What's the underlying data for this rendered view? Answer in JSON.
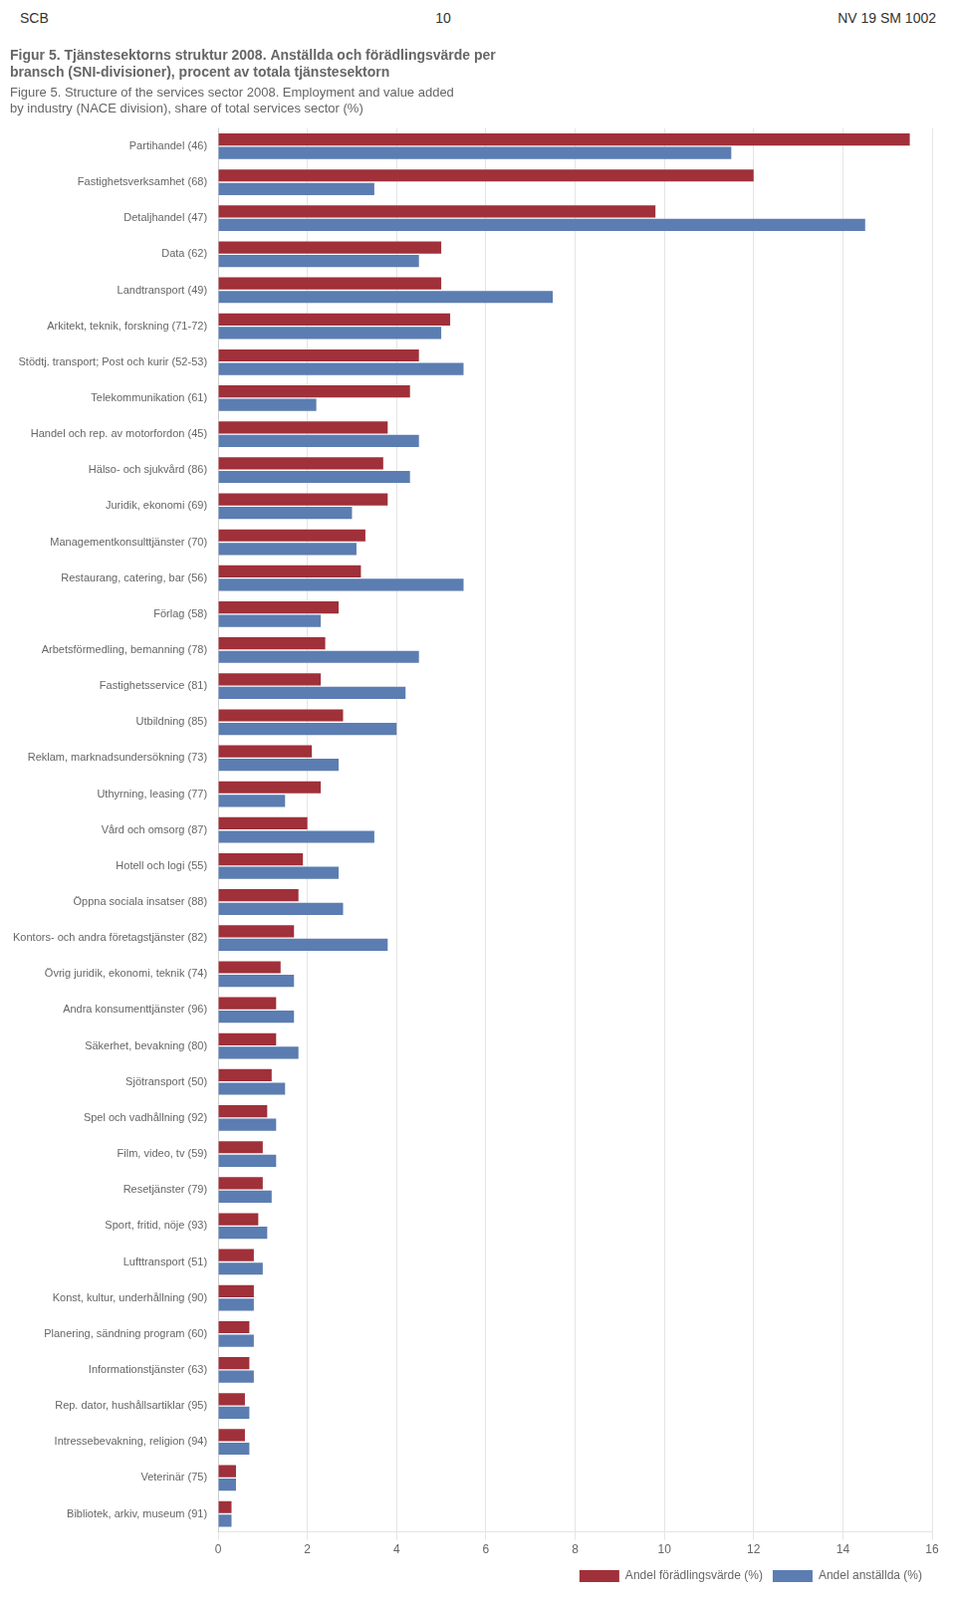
{
  "chart_data": {
    "type": "bar",
    "orientation": "horizontal",
    "annotations": [
      "SCB",
      "10",
      "NV 19 SM 1002"
    ],
    "title": [
      "Figur 5. Tjänstesektorns struktur 2008. Anställda och förädlingsvärde per",
      "bransch (SNI-divisioner), procent av totala tjänstesektorn"
    ],
    "subtitle": [
      "Figure 5. Structure of the services sector 2008. Employment and value added",
      "by industry (NACE division), share of total services sector (%)"
    ],
    "categories": [
      "Partihandel (46)",
      "Fastighetsverksamhet (68)",
      "Detaljhandel (47)",
      "Data (62)",
      "Landtransport (49)",
      "Arkitekt, teknik, forskning (71-72)",
      "Stödtj. transport; Post och kurir (52-53)",
      "Telekommunikation (61)",
      "Handel och rep. av motorfordon (45)",
      "Hälso- och sjukvård (86)",
      "Juridik, ekonomi (69)",
      "Managementkonsulttjänster (70)",
      "Restaurang, catering, bar (56)",
      "Förlag (58)",
      "Arbetsförmedling, bemanning (78)",
      "Fastighetsservice (81)",
      "Utbildning (85)",
      "Reklam, marknadsundersökning (73)",
      "Uthyrning, leasing (77)",
      "Vård och omsorg (87)",
      "Hotell och logi (55)",
      "Öppna sociala insatser (88)",
      "Kontors- och andra företagstjänster (82)",
      "Övrig juridik, ekonomi, teknik (74)",
      "Andra konsumenttjänster (96)",
      "Säkerhet, bevakning (80)",
      "Sjötransport (50)",
      "Spel och vadhållning (92)",
      "Film, video, tv (59)",
      "Resetjänster (79)",
      "Sport, fritid, nöje (93)",
      "Lufttransport (51)",
      "Konst, kultur, underhållning (90)",
      "Planering, sändning program (60)",
      "Informationstjänster (63)",
      "Rep. dator, hushållsartiklar (95)",
      "Intressebevakning, religion (94)",
      "Veterinär (75)",
      "Bibliotek, arkiv, museum (91)"
    ],
    "series": [
      {
        "name": "Andel förädlingsvärde (%)",
        "color": "#A0303A",
        "values": [
          15.5,
          12.0,
          9.8,
          5.0,
          5.0,
          5.2,
          4.5,
          4.3,
          3.8,
          3.7,
          3.8,
          3.3,
          3.2,
          2.7,
          2.4,
          2.3,
          2.8,
          2.1,
          2.3,
          2.0,
          1.9,
          1.8,
          1.7,
          1.4,
          1.3,
          1.3,
          1.2,
          1.1,
          1.0,
          1.0,
          0.9,
          0.8,
          0.8,
          0.7,
          0.7,
          0.6,
          0.6,
          0.4,
          0.3
        ]
      },
      {
        "name": "Andel anställda (%)",
        "color": "#5B7DB1",
        "values": [
          11.5,
          3.5,
          14.5,
          4.5,
          7.5,
          5.0,
          5.5,
          2.2,
          4.5,
          4.3,
          3.0,
          3.1,
          5.5,
          2.3,
          4.5,
          4.2,
          4.0,
          2.7,
          1.5,
          3.5,
          2.7,
          2.8,
          3.8,
          1.7,
          1.7,
          1.8,
          1.5,
          1.3,
          1.3,
          1.2,
          1.1,
          1.0,
          0.8,
          0.8,
          0.8,
          0.7,
          0.7,
          0.4,
          0.3
        ]
      }
    ],
    "xlim": [
      0,
      16
    ],
    "xticks": [
      0,
      2,
      4,
      6,
      8,
      10,
      12,
      14,
      16
    ],
    "grid": true,
    "legend": "lower right"
  }
}
